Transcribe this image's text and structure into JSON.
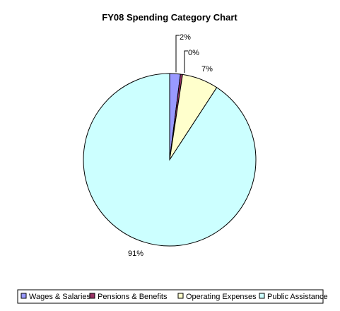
{
  "chart_data": {
    "type": "pie",
    "title": "FY08 Spending Category Chart",
    "categories": [
      "Wages & Salaries",
      "Pensions & Benefits",
      "Operating Expenses",
      "Public Assistance"
    ],
    "values": [
      2,
      0.4,
      6.8,
      90.8
    ],
    "labels": [
      "2%",
      "0%",
      "7%",
      "91%"
    ],
    "colors": [
      "#9999ff",
      "#993366",
      "#ffffcc",
      "#ccffff"
    ],
    "legend_position": "bottom"
  }
}
